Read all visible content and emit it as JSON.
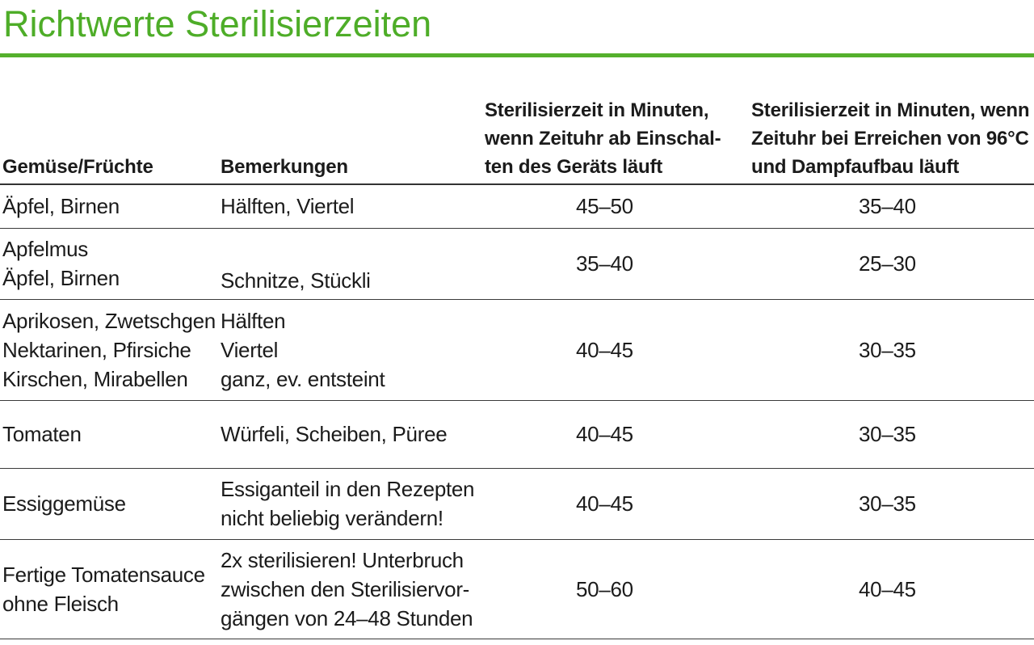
{
  "title": "Richtwerte Sterilisierzeiten",
  "colors": {
    "accent_green": "#4ead28",
    "rule_dark": "#3a3a3a",
    "text": "#1b1b1b"
  },
  "table": {
    "headers": {
      "gemuese": "Gemüse/Früchte",
      "bemerkungen": "Bemerkungen",
      "zeit_einschalten": "Sterilisierzeit in Minuten,\nwenn Zeituhr ab Einschal-\nten des Geräts läuft",
      "zeit_96c": "Sterilisierzeit in Minuten, wenn\nZeituhr bei Erreichen von 96°C\nund Dampfaufbau läuft"
    },
    "rows": [
      {
        "gemuese": "Äpfel, Birnen",
        "bemerkungen": "Hälften, Viertel",
        "zeit_einschalten": "45–50",
        "zeit_96c": "35–40"
      },
      {
        "gemuese": "Apfelmus\nÄpfel, Birnen",
        "bemerkungen": "Schnitze, Stückli",
        "zeit_einschalten": "35–40",
        "zeit_96c": "25–30"
      },
      {
        "gemuese": "Aprikosen, Zwetschgen\nNektarinen, Pfirsiche\nKirschen, Mirabellen",
        "bemerkungen": "Hälften\nViertel\nganz, ev. entsteint",
        "zeit_einschalten": "40–45",
        "zeit_96c": "30–35"
      },
      {
        "gemuese": "Tomaten",
        "bemerkungen": "Würfeli, Scheiben, Püree",
        "zeit_einschalten": "40–45",
        "zeit_96c": "30–35"
      },
      {
        "gemuese": "Essiggemüse",
        "bemerkungen": "Essiganteil in den Rezepten\nnicht beliebig verändern!",
        "zeit_einschalten": "40–45",
        "zeit_96c": "30–35"
      },
      {
        "gemuese": "Fertige Tomatensauce\nohne Fleisch",
        "bemerkungen": "2x sterilisieren! Unterbruch\nzwischen den Sterilisiervor-\ngängen von 24–48 Stunden",
        "zeit_einschalten": "50–60",
        "zeit_96c": "40–45"
      }
    ]
  }
}
